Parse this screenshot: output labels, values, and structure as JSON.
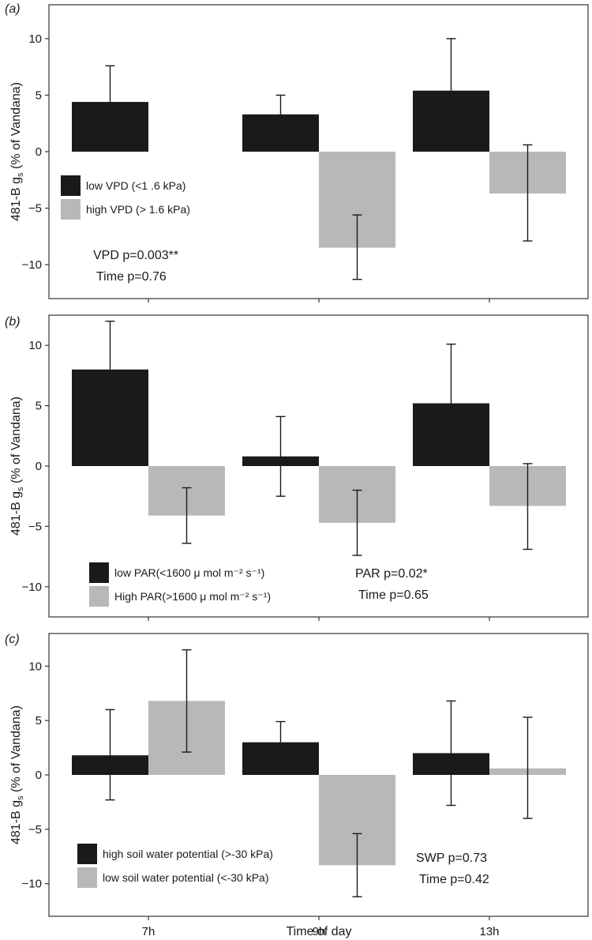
{
  "figure": {
    "xlabel": "Time of day",
    "colors": {
      "dark": "#1a1a1a",
      "light": "#b8b8b8",
      "axis": "#333333"
    }
  },
  "chart_data": [
    {
      "type": "bar",
      "panel_label": "(a)",
      "ylabel": "481-B g",
      "ylabel_subscript": "s",
      "ylabel_suffix": " (% of Vandana)",
      "categories": [
        "7h",
        "9h",
        "13h"
      ],
      "show_x_ticklabels": false,
      "ylim": [
        -13,
        13
      ],
      "yticks": [
        10,
        5,
        0,
        -5,
        -10
      ],
      "series": [
        {
          "name": "low VPD (<1 .6 kPa)",
          "color": "#1a1a1a",
          "values": [
            4.4,
            3.3,
            5.4
          ],
          "err_upper": [
            7.6,
            5.0,
            10.0
          ],
          "err_lower": [
            null,
            null,
            null
          ]
        },
        {
          "name": "high VPD (> 1.6 kPa)",
          "color": "#b8b8b8",
          "values": [
            null,
            -8.5,
            -3.7
          ],
          "err_upper": [
            null,
            -5.6,
            0.6
          ],
          "err_lower": [
            null,
            -11.3,
            -7.9
          ]
        }
      ],
      "legend_position": "lower-left",
      "annotations": [
        "VPD p=0.003**",
        "Time p=0.76"
      ]
    },
    {
      "type": "bar",
      "panel_label": "(b)",
      "ylabel": "481-B g",
      "ylabel_subscript": "s",
      "ylabel_suffix": " (% of Vandana)",
      "categories": [
        "7h",
        "9h",
        "13h"
      ],
      "show_x_ticklabels": false,
      "ylim": [
        -12.5,
        12.5
      ],
      "yticks": [
        10,
        5,
        0,
        -5,
        -10
      ],
      "series": [
        {
          "name": "low PAR(<1600 μ mol m⁻² s⁻¹)",
          "color": "#1a1a1a",
          "values": [
            8.0,
            0.8,
            5.2
          ],
          "err_upper": [
            12.0,
            4.1,
            10.1
          ],
          "err_lower": [
            null,
            -2.5,
            null
          ]
        },
        {
          "name": "High PAR(>1600 μ mol m⁻² s⁻¹)",
          "color": "#b8b8b8",
          "values": [
            -4.1,
            -4.7,
            -3.3
          ],
          "err_upper": [
            -1.8,
            -2.0,
            0.2
          ],
          "err_lower": [
            -6.4,
            -7.4,
            -6.9
          ]
        }
      ],
      "legend_position": "lower-left",
      "annotations": [
        "PAR p=0.02*",
        "Time p=0.65"
      ]
    },
    {
      "type": "bar",
      "panel_label": "(c)",
      "ylabel": "481-B g",
      "ylabel_subscript": "s",
      "ylabel_suffix": " (% of Vandana)",
      "categories": [
        "7h",
        "9h",
        "13h"
      ],
      "show_x_ticklabels": true,
      "ylim": [
        -13,
        13
      ],
      "yticks": [
        10,
        5,
        0,
        -5,
        -10
      ],
      "series": [
        {
          "name": "high soil water potential (>-30 kPa)",
          "color": "#1a1a1a",
          "values": [
            1.8,
            3.0,
            2.0
          ],
          "err_upper": [
            6.0,
            4.9,
            6.8
          ],
          "err_lower": [
            -2.3,
            null,
            -2.8
          ]
        },
        {
          "name": "low soil water potential (<-30 kPa)",
          "color": "#b8b8b8",
          "values": [
            6.8,
            -8.3,
            0.6
          ],
          "err_upper": [
            11.5,
            -5.4,
            5.3
          ],
          "err_lower": [
            2.1,
            -11.2,
            -4.0
          ]
        }
      ],
      "legend_position": "lower-left",
      "annotations": [
        "SWP p=0.73",
        "Time p=0.42"
      ]
    }
  ]
}
